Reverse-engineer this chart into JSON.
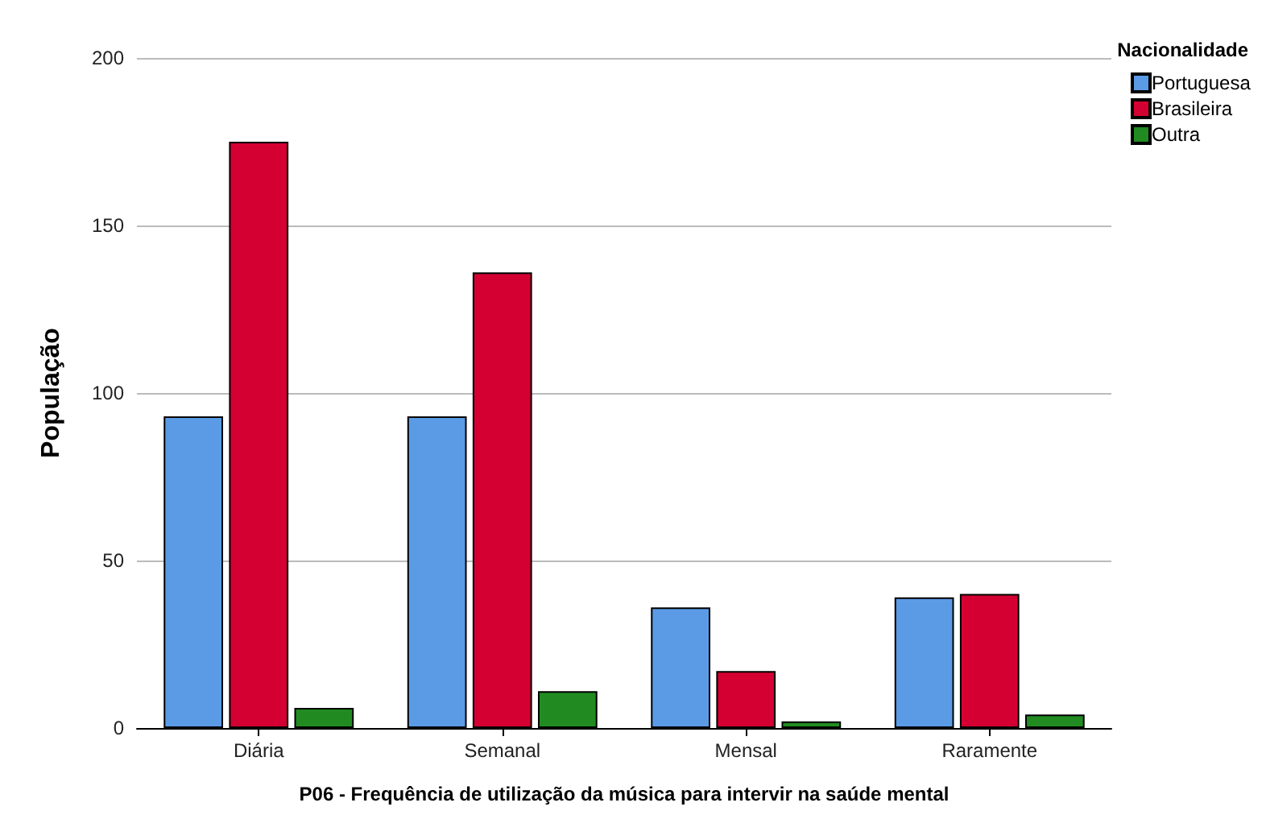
{
  "chart_data": {
    "type": "bar",
    "xlabel": "P06 - Frequência de utilização da música para intervir na saúde mental",
    "ylabel": "População",
    "legend_title": "Nacionalidade",
    "categories": [
      "Diária",
      "Semanal",
      "Mensal",
      "Raramente"
    ],
    "series": [
      {
        "name": "Portuguesa",
        "color": "#5b9be6",
        "values": [
          93,
          93,
          36,
          39
        ]
      },
      {
        "name": "Brasileira",
        "color": "#d40032",
        "values": [
          175,
          136,
          17,
          40
        ]
      },
      {
        "name": "Outra",
        "color": "#218b21",
        "values": [
          6,
          11,
          2,
          4
        ]
      }
    ],
    "ylim": [
      0,
      200
    ],
    "yticks": [
      0,
      50,
      100,
      150,
      200
    ],
    "grid": "y",
    "legend": "top right"
  }
}
